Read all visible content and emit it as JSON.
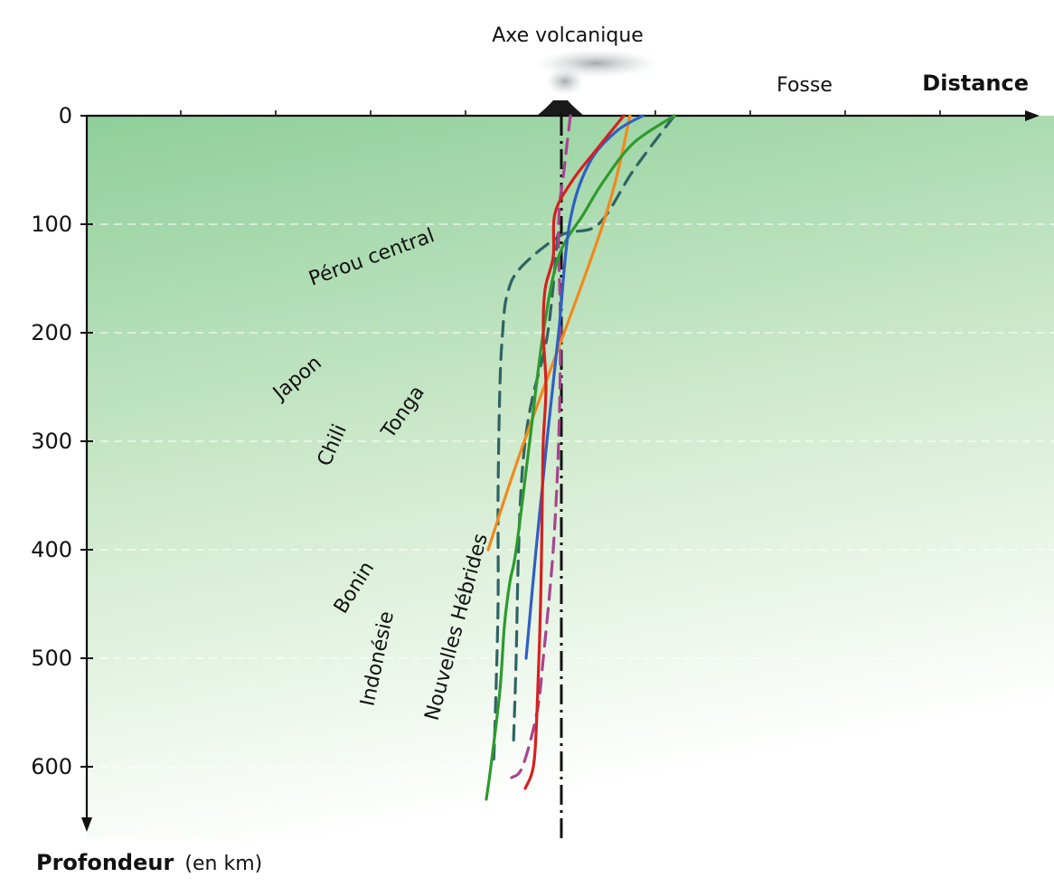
{
  "chart_data": {
    "type": "line",
    "title": "",
    "xlabel": "Distance",
    "ylabel": "Profondeur",
    "ylabel_unit": "(en km)",
    "ylim": [
      0,
      650
    ],
    "yticks": [
      0,
      100,
      200,
      300,
      400,
      500,
      600
    ],
    "yticks_labels": [
      "0",
      "100",
      "200",
      "300",
      "400",
      "500",
      "600"
    ],
    "y_inverted": true,
    "grid": "dashed horizontal lines",
    "annotations": {
      "volcanic_axis": "Axe volcanique",
      "trench": "Fosse"
    },
    "colors": {
      "background_top": "#8fcf9a",
      "background_bottom": "#ffffff",
      "axis": "#111111",
      "volcanic_axis_line": "#111111"
    },
    "series": [
      {
        "name": "Japon",
        "color": "#f08a1c",
        "style": "solid",
        "points": [
          [
            76,
            0
          ],
          [
            46,
            100
          ],
          [
            -41,
            300
          ],
          [
            -81,
            400
          ]
        ]
      },
      {
        "name": "Pérou central",
        "color": "#2f6464",
        "style": "dashed",
        "points": [
          [
            125,
            0
          ],
          [
            80,
            50
          ],
          [
            41,
            100
          ],
          [
            0,
            110
          ],
          [
            -45,
            140
          ],
          [
            -60,
            165
          ],
          [
            -65,
            200
          ],
          [
            -68,
            250
          ],
          [
            -70,
            350
          ],
          [
            -70,
            450
          ],
          [
            -73,
            550
          ],
          [
            -75,
            600
          ]
        ]
      },
      {
        "name": "Chili",
        "color": "#2f6464",
        "style": "dashed",
        "points": [
          [
            -4,
            110
          ],
          [
            -15,
            200
          ],
          [
            -32,
            260
          ],
          [
            -40,
            300
          ],
          [
            -45,
            350
          ],
          [
            -48,
            420
          ],
          [
            -50,
            500
          ],
          [
            -53,
            580
          ]
        ]
      },
      {
        "name": "Tonga",
        "color": "#2e9a2e",
        "style": "solid",
        "points": [
          [
            125,
            0
          ],
          [
            80,
            25
          ],
          [
            47,
            60
          ],
          [
            25,
            90
          ],
          [
            -3,
            130
          ],
          [
            -20,
            200
          ],
          [
            -35,
            300
          ],
          [
            -50,
            400
          ],
          [
            -57,
            430
          ],
          [
            -63,
            470
          ],
          [
            -68,
            530
          ],
          [
            -78,
            600
          ],
          [
            -83,
            630
          ]
        ]
      },
      {
        "name": "Bonin",
        "color": "#2f5fc4",
        "style": "solid",
        "points": [
          [
            90,
            0
          ],
          [
            60,
            15
          ],
          [
            30,
            45
          ],
          [
            9,
            100
          ],
          [
            -3,
            200
          ],
          [
            -16,
            300
          ],
          [
            -28,
            400
          ],
          [
            -39,
            500
          ]
        ]
      },
      {
        "name": "Indonésie",
        "color": "#d6201f",
        "style": "solid",
        "points": [
          [
            69,
            0
          ],
          [
            40,
            30
          ],
          [
            12,
            60
          ],
          [
            -7,
            90
          ],
          [
            -9,
            130
          ],
          [
            -18,
            160
          ],
          [
            -20,
            200
          ],
          [
            -17,
            250
          ],
          [
            -20,
            300
          ],
          [
            -21,
            350
          ],
          [
            -23,
            450
          ],
          [
            -27,
            550
          ],
          [
            -31,
            600
          ],
          [
            -40,
            620
          ]
        ]
      },
      {
        "name": "Nouvelles Hébrides",
        "color": "#a8448f",
        "style": "dashed",
        "points": [
          [
            10,
            0
          ],
          [
            3,
            50
          ],
          [
            -3,
            100
          ],
          [
            -1,
            200
          ],
          [
            -3,
            300
          ],
          [
            -9,
            400
          ],
          [
            -20,
            500
          ],
          [
            -27,
            550
          ],
          [
            -43,
            600
          ],
          [
            -55,
            610
          ]
        ]
      }
    ]
  }
}
